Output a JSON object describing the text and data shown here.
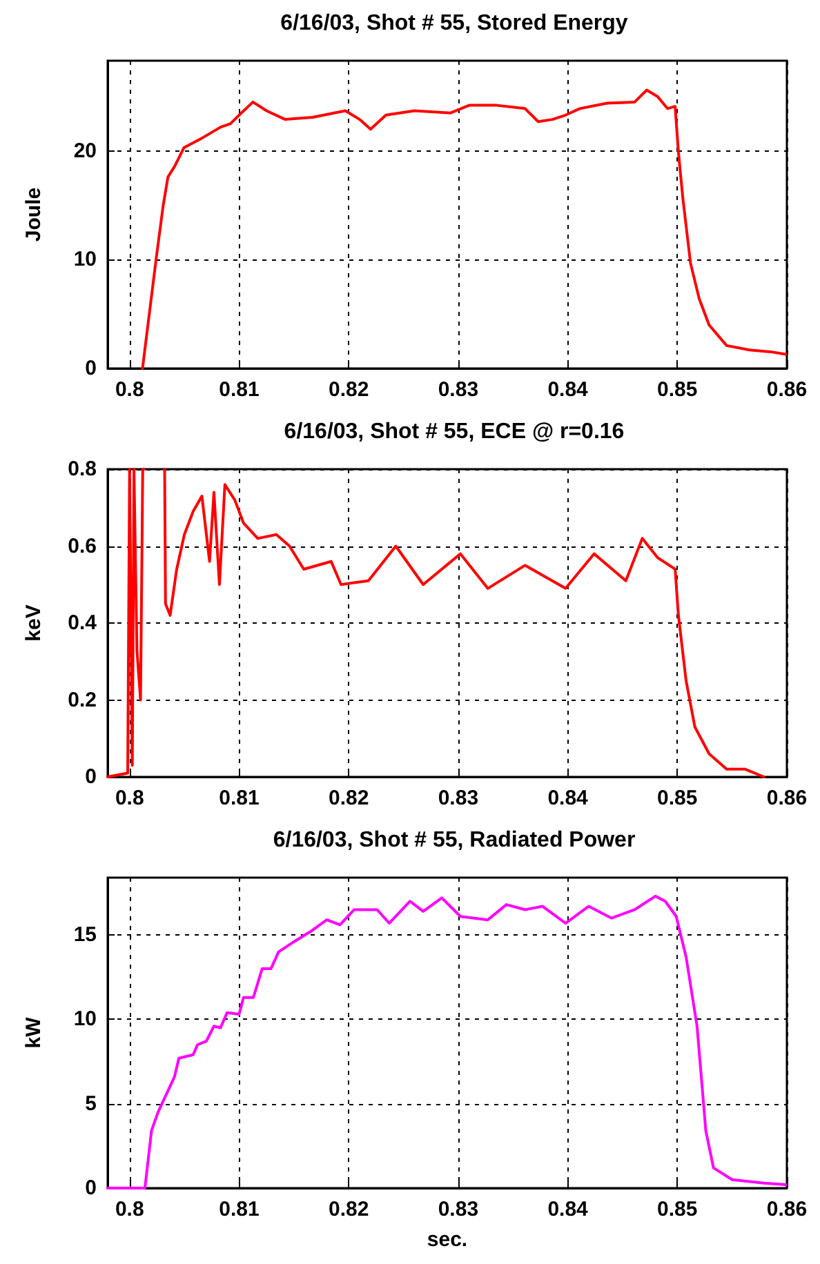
{
  "chart_data": [
    {
      "type": "line",
      "title": "6/16/03, Shot # 55, Stored Energy",
      "ylabel": "Joule",
      "xlim": [
        0.798,
        0.86
      ],
      "xticks": [
        0.8,
        0.81,
        0.82,
        0.83,
        0.84,
        0.85,
        0.86
      ],
      "ylim": [
        0,
        28.3
      ],
      "yticks": [
        0,
        10,
        20
      ],
      "grid": true,
      "marker": "none",
      "line_style": "solid",
      "series": [
        {
          "color": "#ff0000",
          "x": [
            0.80118,
            0.80244,
            0.80307,
            0.8035,
            0.80412,
            0.80496,
            0.80664,
            0.80832,
            0.8092,
            0.81,
            0.81126,
            0.8125,
            0.8142,
            0.8167,
            0.8197,
            0.821,
            0.822,
            0.8234,
            0.826,
            0.8293,
            0.831,
            0.8335,
            0.8361,
            0.8373,
            0.8386,
            0.8398,
            0.8411,
            0.8436,
            0.8461,
            0.8472,
            0.8482,
            0.8491,
            0.8498,
            0.8501,
            0.8505,
            0.8512,
            0.852,
            0.8529,
            0.8545,
            0.8566,
            0.8587,
            0.8599
          ],
          "values": [
            0,
            10.2,
            15.0,
            17.6,
            18.6,
            20.3,
            21.2,
            22.2,
            22.5,
            23.3,
            24.5,
            23.7,
            22.9,
            23.1,
            23.7,
            22.9,
            22.0,
            23.3,
            23.7,
            23.5,
            24.2,
            24.2,
            23.9,
            22.7,
            22.9,
            23.3,
            23.9,
            24.4,
            24.5,
            25.6,
            25.0,
            23.9,
            24.1,
            19.9,
            15.7,
            9.7,
            6.4,
            4.0,
            2.1,
            1.7,
            1.5,
            1.3
          ]
        }
      ]
    },
    {
      "type": "line",
      "title": "6/16/03, Shot # 55, ECE @ r=0.16",
      "ylabel": "keV",
      "xlim": [
        0.798,
        0.86
      ],
      "xticks": [
        0.8,
        0.81,
        0.82,
        0.83,
        0.84,
        0.85,
        0.86
      ],
      "ylim": [
        0,
        0.8
      ],
      "yticks": [
        0,
        0.2,
        0.4,
        0.6,
        0.8
      ],
      "grid": true,
      "marker": "none",
      "line_style": "solid",
      "series": [
        {
          "color": "#ff0000",
          "x": [
            0.798,
            0.79983,
            0.8,
            0.80025,
            0.8004,
            0.80067,
            0.801,
            0.8012,
            0.8013,
            0.8025,
            0.8032,
            0.80328,
            0.8037,
            0.8043,
            0.805,
            0.8058,
            0.8066,
            0.8073,
            0.8077,
            0.8082,
            0.8087,
            0.8096,
            0.8104,
            0.8117,
            0.8134,
            0.8146,
            0.8159,
            0.8184,
            0.8193,
            0.8218,
            0.8243,
            0.8268,
            0.8302,
            0.8327,
            0.8361,
            0.8398,
            0.8424,
            0.8453,
            0.8468,
            0.8482,
            0.8498,
            0.8501,
            0.8508,
            0.8516,
            0.8529,
            0.8545,
            0.8562,
            0.8579
          ],
          "values": [
            0,
            0.01,
            0.8,
            0.03,
            0.8,
            0.33,
            0.2,
            0.8,
            0.8,
            null,
            0.8,
            0.45,
            0.42,
            0.54,
            0.63,
            0.69,
            0.73,
            0.56,
            0.74,
            0.5,
            0.76,
            0.72,
            0.66,
            0.62,
            0.63,
            0.6,
            0.54,
            0.56,
            0.5,
            0.51,
            0.6,
            0.5,
            0.58,
            0.49,
            0.55,
            0.49,
            0.58,
            0.51,
            0.62,
            0.57,
            0.54,
            0.42,
            0.25,
            0.13,
            0.06,
            0.02,
            0.02,
            0
          ]
        }
      ]
    },
    {
      "type": "line",
      "title": "6/16/03, Shot # 55, Radiated Power",
      "ylabel": "kW",
      "xlabel": "sec.",
      "xlim": [
        0.798,
        0.86
      ],
      "xticks": [
        0.8,
        0.81,
        0.82,
        0.83,
        0.84,
        0.85,
        0.86
      ],
      "ylim": [
        0,
        18.4
      ],
      "yticks": [
        0,
        5,
        10,
        15
      ],
      "grid": true,
      "marker": "none",
      "line_style": "solid",
      "series": [
        {
          "color": "#ff00ff",
          "x": [
            0.798,
            0.8014,
            0.802,
            0.8026,
            0.8041,
            0.8045,
            0.8058,
            0.8062,
            0.807,
            0.8077,
            0.8083,
            0.8089,
            0.81,
            0.8104,
            0.8113,
            0.8121,
            0.8129,
            0.8136,
            0.815,
            0.8165,
            0.818,
            0.8192,
            0.8205,
            0.8226,
            0.8237,
            0.8256,
            0.8268,
            0.8285,
            0.8302,
            0.8327,
            0.8344,
            0.8361,
            0.8377,
            0.8398,
            0.8419,
            0.844,
            0.8461,
            0.848,
            0.8489,
            0.8499,
            0.8508,
            0.8518,
            0.8526,
            0.8533,
            0.855,
            0.8579,
            0.8599
          ],
          "values": [
            0,
            0,
            3.4,
            4.5,
            6.6,
            7.7,
            7.9,
            8.5,
            8.7,
            9.6,
            9.5,
            10.4,
            10.3,
            11.3,
            11.3,
            13.0,
            13.0,
            14.0,
            14.6,
            15.2,
            15.9,
            15.6,
            16.5,
            16.5,
            15.7,
            17.0,
            16.4,
            17.2,
            16.1,
            15.9,
            16.8,
            16.5,
            16.7,
            15.7,
            16.7,
            16.0,
            16.5,
            17.3,
            17.0,
            16.1,
            13.7,
            9.6,
            3.4,
            1.2,
            0.5,
            0.3,
            0.2
          ]
        }
      ]
    }
  ]
}
